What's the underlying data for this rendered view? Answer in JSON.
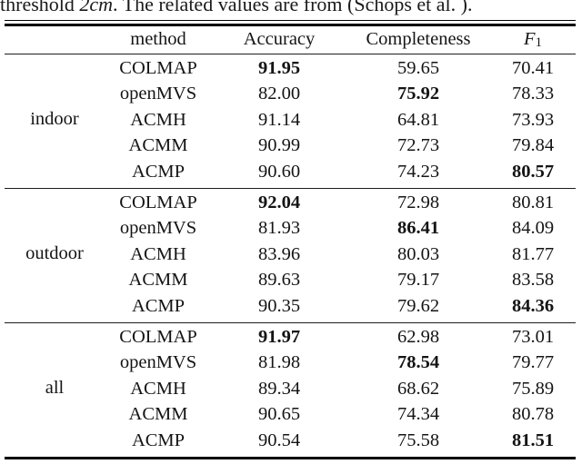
{
  "caption": {
    "prefix": "threshold ",
    "threshold_value": "2cm",
    "suffix": ". The related values are from (Schops et al. )."
  },
  "table": {
    "header": {
      "method": "method",
      "accuracy": "Accuracy",
      "completeness": "Completeness",
      "f1_base": "F",
      "f1_sub": "1"
    },
    "groups": [
      {
        "label": "indoor",
        "rows": [
          {
            "method": "COLMAP",
            "accuracy": "91.95",
            "completeness": "59.65",
            "f1": "70.41",
            "bold": [
              "accuracy"
            ]
          },
          {
            "method": "openMVS",
            "accuracy": "82.00",
            "completeness": "75.92",
            "f1": "78.33",
            "bold": [
              "completeness"
            ]
          },
          {
            "method": "ACMH",
            "accuracy": "91.14",
            "completeness": "64.81",
            "f1": "73.93",
            "bold": []
          },
          {
            "method": "ACMM",
            "accuracy": "90.99",
            "completeness": "72.73",
            "f1": "79.84",
            "bold": []
          },
          {
            "method": "ACMP",
            "accuracy": "90.60",
            "completeness": "74.23",
            "f1": "80.57",
            "bold": [
              "f1"
            ]
          }
        ]
      },
      {
        "label": "outdoor",
        "rows": [
          {
            "method": "COLMAP",
            "accuracy": "92.04",
            "completeness": "72.98",
            "f1": "80.81",
            "bold": [
              "accuracy"
            ]
          },
          {
            "method": "openMVS",
            "accuracy": "81.93",
            "completeness": "86.41",
            "f1": "84.09",
            "bold": [
              "completeness"
            ]
          },
          {
            "method": "ACMH",
            "accuracy": "83.96",
            "completeness": "80.03",
            "f1": "81.77",
            "bold": []
          },
          {
            "method": "ACMM",
            "accuracy": "89.63",
            "completeness": "79.17",
            "f1": "83.58",
            "bold": []
          },
          {
            "method": "ACMP",
            "accuracy": "90.35",
            "completeness": "79.62",
            "f1": "84.36",
            "bold": [
              "f1"
            ]
          }
        ]
      },
      {
        "label": "all",
        "rows": [
          {
            "method": "COLMAP",
            "accuracy": "91.97",
            "completeness": "62.98",
            "f1": "73.01",
            "bold": [
              "accuracy"
            ]
          },
          {
            "method": "openMVS",
            "accuracy": "81.98",
            "completeness": "78.54",
            "f1": "79.77",
            "bold": [
              "completeness"
            ]
          },
          {
            "method": "ACMH",
            "accuracy": "89.34",
            "completeness": "68.62",
            "f1": "75.89",
            "bold": []
          },
          {
            "method": "ACMM",
            "accuracy": "90.65",
            "completeness": "74.34",
            "f1": "80.78",
            "bold": []
          },
          {
            "method": "ACMP",
            "accuracy": "90.54",
            "completeness": "75.58",
            "f1": "81.51",
            "bold": [
              "f1"
            ]
          }
        ]
      }
    ]
  }
}
